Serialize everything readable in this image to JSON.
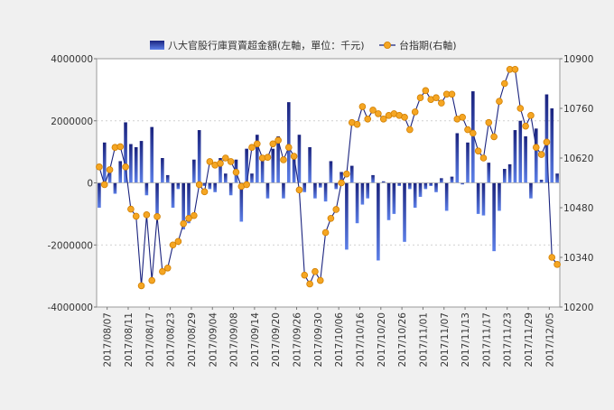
{
  "chart_data": {
    "type": "bar-line-combo",
    "legend": {
      "placement": "top-center",
      "bar_label": "八大官股行庫買賣超金額(左軸，單位：千元)",
      "line_label": "台指期(右軸)"
    },
    "grid": "horizontal-dashed",
    "colors": {
      "bar_dark": "#1a237e",
      "bar_light": "#5c7fe8",
      "line": "#1a237e",
      "marker_fill": "#f5a623",
      "marker_stroke": "#d17f00",
      "plot_bg": "#ffffff",
      "page_bg": "#f0f0f0"
    },
    "y_left": {
      "min": -4000000,
      "max": 4000000,
      "ticks": [
        "4000000",
        "2000000",
        "0",
        "-2000000",
        "-4000000"
      ]
    },
    "y_right": {
      "min": 10200,
      "max": 10900,
      "ticks": [
        "10900",
        "10760",
        "10620",
        "10480",
        "10340",
        "10200"
      ]
    },
    "x_tick_labels": [
      "2017/08/07",
      "2017/08/11",
      "2017/08/17",
      "2017/08/23",
      "2017/08/29",
      "2017/09/04",
      "2017/09/08",
      "2017/09/14",
      "2017/09/20",
      "2017/09/26",
      "2017/09/30",
      "2017/10/06",
      "2017/10/16",
      "2017/10/20",
      "2017/10/26",
      "2017/11/01",
      "2017/11/07",
      "2017/11/13",
      "2017/11/17",
      "2017/11/23",
      "2017/11/29",
      "2017/12/05"
    ],
    "bar_values": [
      -800000,
      1300000,
      500000,
      -350000,
      700000,
      1950000,
      1250000,
      1150000,
      1350000,
      -400000,
      1800000,
      -1100000,
      800000,
      250000,
      -800000,
      -200000,
      -1500000,
      -1300000,
      750000,
      1700000,
      -100000,
      -200000,
      -300000,
      800000,
      300000,
      -400000,
      750000,
      -1250000,
      1100000,
      300000,
      1550000,
      850000,
      -500000,
      1100000,
      1500000,
      -500000,
      2600000,
      950000,
      1550000,
      -300000,
      1150000,
      -500000,
      -150000,
      -600000,
      700000,
      -200000,
      350000,
      -2150000,
      550000,
      -1300000,
      -700000,
      -500000,
      250000,
      -2500000,
      50000,
      -1200000,
      -1000000,
      -100000,
      -1900000,
      -200000,
      -800000,
      -450000,
      -200000,
      -100000,
      -300000,
      150000,
      -900000,
      200000,
      1600000,
      -50000,
      1300000,
      2950000,
      -1000000,
      -1050000,
      650000,
      -2200000,
      -900000,
      450000,
      600000,
      1700000,
      2000000,
      1500000,
      -500000,
      1750000,
      100000,
      2850000,
      2400000,
      300000
    ],
    "line_values": [
      10595,
      10545,
      10587,
      10650,
      10652,
      10595,
      10476,
      10456,
      10260,
      10460,
      10275,
      10455,
      10300,
      10310,
      10375,
      10385,
      10435,
      10450,
      10458,
      10545,
      10525,
      10610,
      10600,
      10605,
      10620,
      10610,
      10580,
      10540,
      10545,
      10650,
      10660,
      10620,
      10622,
      10660,
      10670,
      10615,
      10650,
      10625,
      10530,
      10290,
      10265,
      10300,
      10275,
      10410,
      10450,
      10475,
      10550,
      10575,
      10720,
      10715,
      10765,
      10730,
      10755,
      10745,
      10730,
      10740,
      10745,
      10740,
      10735,
      10700,
      10750,
      10790,
      10810,
      10785,
      10790,
      10775,
      10800,
      10800,
      10730,
      10735,
      10700,
      10690,
      10640,
      10620,
      10720,
      10680,
      10780,
      10830,
      10870,
      10870,
      10760,
      10710,
      10740,
      10650,
      10630,
      10665,
      10340,
      10320
    ]
  }
}
